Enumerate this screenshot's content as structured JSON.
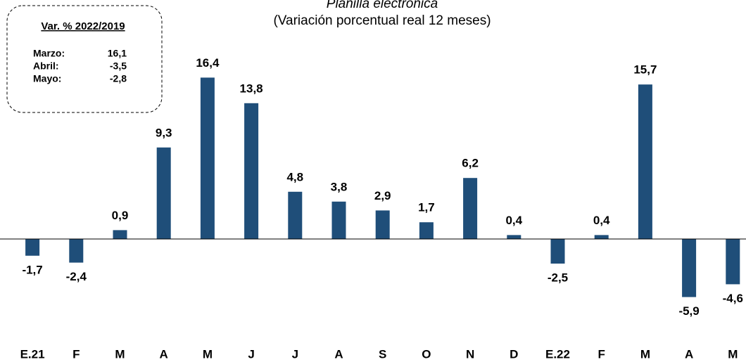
{
  "chart_data": {
    "type": "bar",
    "title": "Planilla electrónica",
    "subtitle": "(Variación porcentual real 12 meses)",
    "categories": [
      "E.21",
      "F",
      "M",
      "A",
      "M",
      "J",
      "J",
      "A",
      "S",
      "O",
      "N",
      "D",
      "E.22",
      "F",
      "M",
      "A",
      "M"
    ],
    "values": [
      -1.7,
      -2.4,
      0.9,
      9.3,
      16.4,
      13.8,
      4.8,
      3.8,
      2.9,
      1.7,
      6.2,
      0.4,
      -2.5,
      0.4,
      15.7,
      -5.9,
      -4.6
    ],
    "value_labels": [
      "-1,7",
      "-2,4",
      "0,9",
      "9,3",
      "16,4",
      "13,8",
      "4,8",
      "3,8",
      "2,9",
      "1,7",
      "6,2",
      "0,4",
      "-2,5",
      "0,4",
      "15,7",
      "-5,9",
      "-4,6"
    ],
    "color": "#1f4e79",
    "ylim": [
      -10,
      20
    ],
    "annotation": {
      "title": "Var. % 2022/2019",
      "rows": [
        {
          "label": "Marzo:",
          "value": "16,1"
        },
        {
          "label": "Abril:",
          "value": "-3,5"
        },
        {
          "label": "Mayo:",
          "value": "-2,8"
        }
      ]
    }
  }
}
